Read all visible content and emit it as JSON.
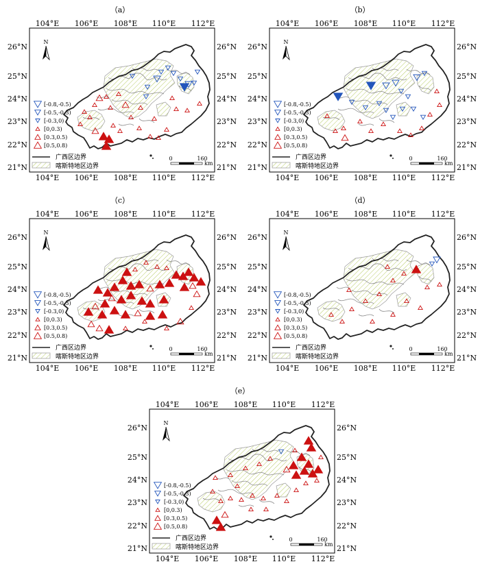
{
  "figure": {
    "panels": [
      {
        "label": "（a）"
      },
      {
        "label": "（b）"
      },
      {
        "label": "（c）"
      },
      {
        "label": "（d）"
      },
      {
        "label": "（e）"
      }
    ],
    "lon_ticks": [
      "104°E",
      "106°E",
      "108°E",
      "110°E",
      "112°E"
    ],
    "lat_ticks": [
      "26°N",
      "25°N",
      "24°N",
      "23°N",
      "22°N",
      "21°N"
    ],
    "north_label": "N",
    "legend": {
      "classes": [
        {
          "label": "[-0.8,-0.5)",
          "symbol": "down-triangle-large",
          "color": "#2255bb"
        },
        {
          "label": "[-0.5,-0.3)",
          "symbol": "down-triangle-medium",
          "color": "#2255bb"
        },
        {
          "label": "[-0.3,0)",
          "symbol": "down-triangle-small",
          "color": "#2255bb"
        },
        {
          "label": "[0,0.3)",
          "symbol": "up-triangle-small",
          "color": "#cc1111"
        },
        {
          "label": "[0.3,0.5)",
          "symbol": "up-triangle-medium",
          "color": "#cc1111"
        },
        {
          "label": "[0.5,0.8)",
          "symbol": "up-triangle-large",
          "color": "#cc1111"
        }
      ],
      "boundary_label": "广西区边界",
      "karst_label": "喀斯特地区边界"
    },
    "scale_bar": {
      "zero": "0",
      "value": "160",
      "unit": "km"
    }
  }
}
